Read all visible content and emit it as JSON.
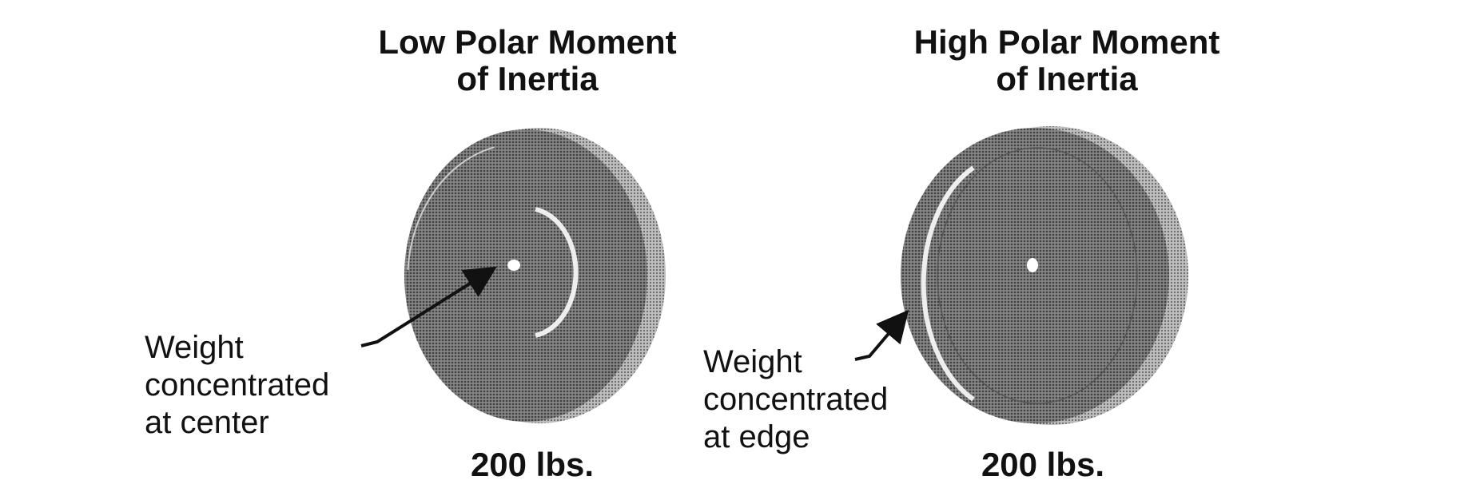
{
  "left": {
    "title_line1": "Low Polar Moment",
    "title_line2": "of Inertia",
    "label_line1": "Weight",
    "label_line2": "concentrated",
    "label_line3": "at center",
    "weight": "200 lbs."
  },
  "right": {
    "title_line1": "High Polar Moment",
    "title_line2": "of Inertia",
    "label_line1": "Weight",
    "label_line2": "concentrated",
    "label_line3": "at edge",
    "weight": "200 lbs."
  },
  "colors": {
    "disc": "#6e6e6e",
    "disc_edge": "#9a9a9a",
    "highlight": "#e8e8e8"
  }
}
